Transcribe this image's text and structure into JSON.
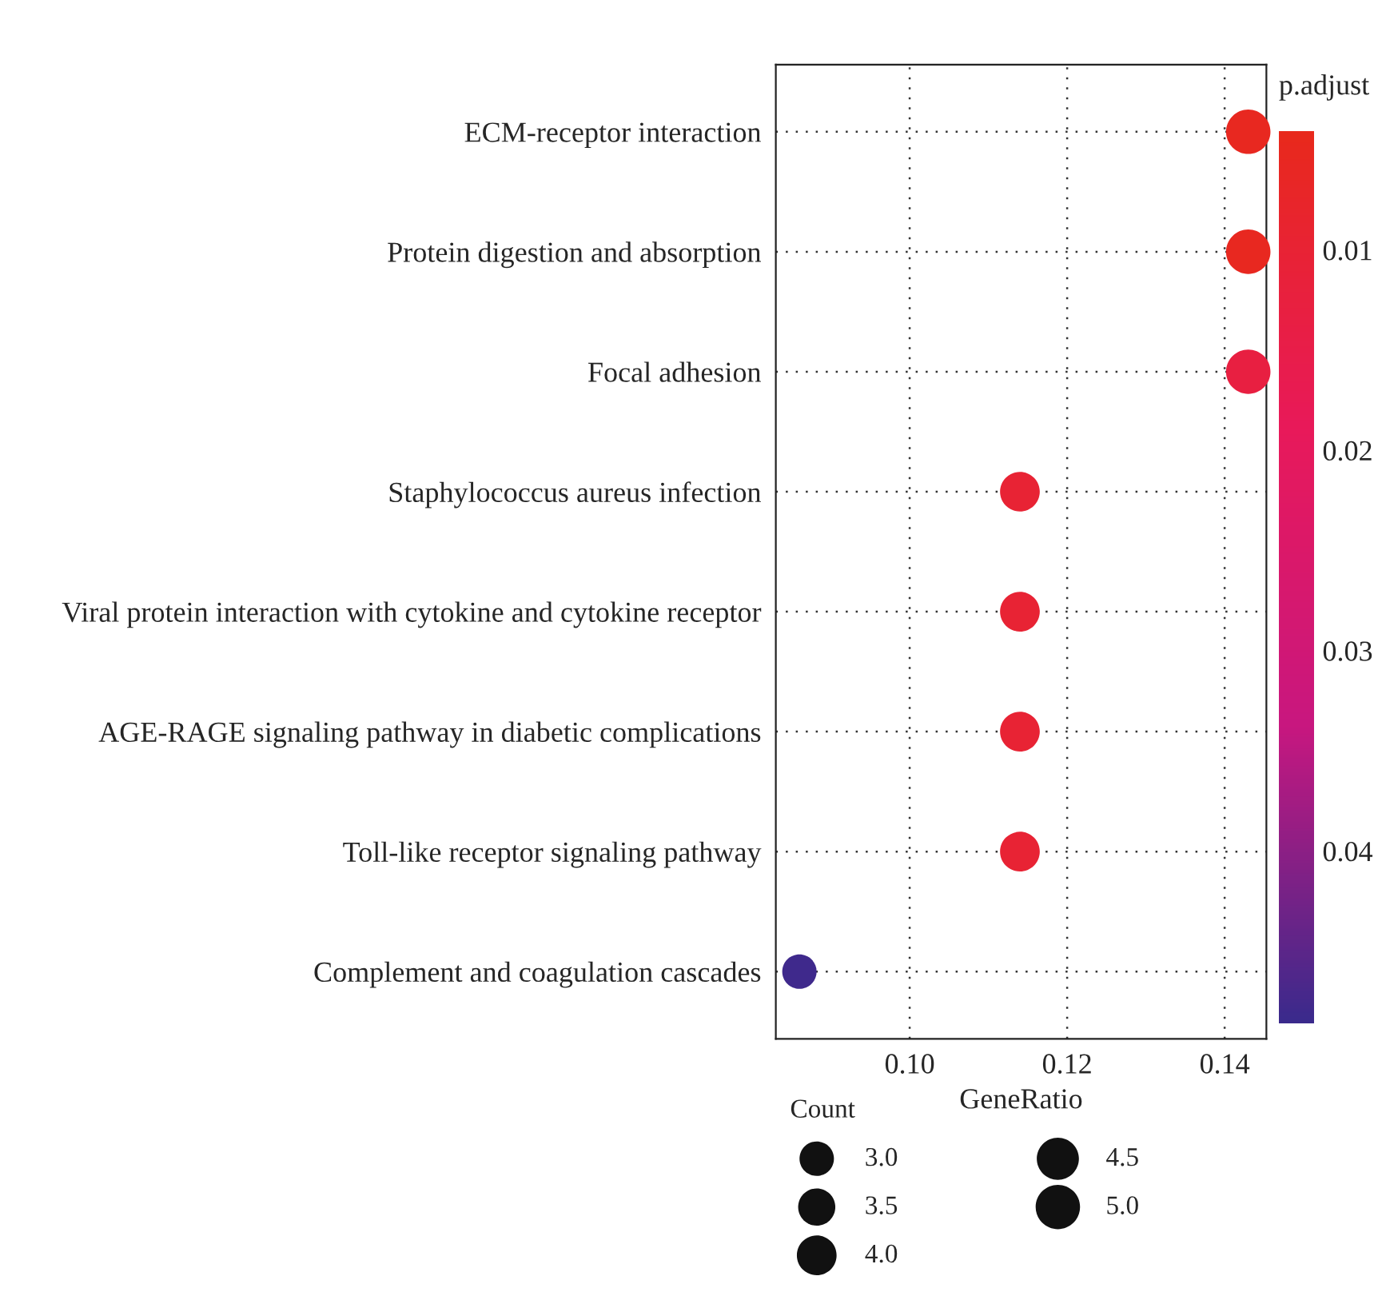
{
  "chart_data": {
    "type": "bubble",
    "orientation": "horizontal",
    "xlabel": "GeneRatio",
    "clabel": "p.adjust",
    "legend_title": "Count",
    "categories": [
      "ECM-receptor interaction",
      "Protein digestion and absorption",
      "Focal adhesion",
      "Staphylococcus aureus infection",
      "Viral protein interaction with cytokine and cytokine receptor",
      "AGE-RAGE signaling pathway in diabetic complications",
      "Toll-like receptor signaling pathway",
      "Complement and coagulation cascades"
    ],
    "values": [
      0.143,
      0.143,
      0.143,
      0.114,
      0.114,
      0.114,
      0.114,
      0.086
    ],
    "sizes": [
      5,
      5,
      5,
      4,
      4,
      4,
      4,
      3
    ],
    "cvalues": [
      0.005,
      0.005,
      0.013,
      0.01,
      0.01,
      0.01,
      0.01,
      0.048
    ],
    "size_legend": [
      {
        "value": 3,
        "label": "3.0"
      },
      {
        "value": 3.5,
        "label": "3.5"
      },
      {
        "value": 4,
        "label": "4.0"
      },
      {
        "value": 4.5,
        "label": "4.5"
      },
      {
        "value": 5,
        "label": "5.0"
      }
    ],
    "xlim": [
      0.083,
      0.1453
    ],
    "xticks": [
      {
        "value": 0.1,
        "label": "0.10"
      },
      {
        "value": 0.12,
        "label": "0.12"
      },
      {
        "value": 0.14,
        "label": "0.14"
      }
    ],
    "clim": [
      0.0041,
      0.0486
    ],
    "cticks": [
      0.01,
      0.02,
      0.03,
      0.04
    ],
    "grid": true
  }
}
